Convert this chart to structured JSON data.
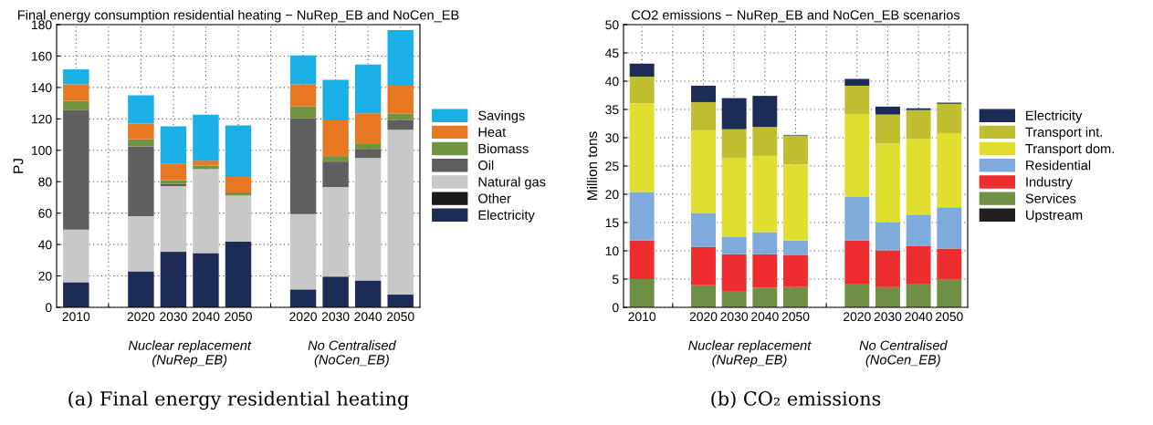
{
  "chart_data": [
    {
      "type": "bar",
      "title": "Final energy consumption residential heating − NuRep_EB and NoCen_EB",
      "ylabel": "PJ",
      "stacked": true,
      "categories": [
        "2010",
        null,
        "2020",
        "2030",
        "2040",
        "2050",
        null,
        "2020",
        "2030",
        "2040",
        "2050"
      ],
      "series": [
        {
          "name": "Electricity",
          "color": "#1d2b57",
          "values": [
            16,
            null,
            23,
            35,
            34.5,
            42,
            null,
            11.4,
            19.6,
            17.1,
            8.1
          ]
        },
        {
          "name": "Other",
          "color": "#1a1a1a",
          "values": [
            0,
            null,
            0,
            0.6,
            0,
            0,
            null,
            0,
            0,
            0,
            0
          ]
        },
        {
          "name": "Natural gas",
          "color": "#c8c8ca",
          "values": [
            33.5,
            null,
            35,
            41.6,
            53.5,
            29.2,
            null,
            47.9,
            57,
            78,
            104.9
          ]
        },
        {
          "name": "Oil",
          "color": "#5f5f5f",
          "values": [
            76,
            null,
            44.5,
            1.4,
            null,
            null,
            null,
            61.2,
            16.2,
            5.8,
            6.4
          ]
        },
        {
          "name": "Biomass",
          "color": "#72933f",
          "values": [
            6,
            null,
            4.5,
            2.4,
            2.3,
            2,
            null,
            7.5,
            3.5,
            3.1,
            4
          ]
        },
        {
          "name": "Heat",
          "color": "#e87722",
          "values": [
            10.5,
            null,
            10,
            10.3,
            3.1,
            9.8,
            null,
            14,
            22.7,
            19.6,
            17.7
          ]
        },
        {
          "name": "Savings",
          "color": "#1aafe6",
          "values": [
            9.5,
            null,
            18,
            24,
            29.2,
            32.8,
            null,
            18.4,
            25.8,
            31,
            35.4
          ]
        }
      ],
      "ylim": [
        0,
        180
      ],
      "yticks": [
        0,
        20,
        40,
        60,
        80,
        100,
        120,
        140,
        160,
        180
      ],
      "grid": true,
      "legend": "right",
      "annotations": [
        "Nuclear replacement\n(NuRep_EB)",
        "No Centralised\n(NoCen_EB)",
        "(a) Final energy residential heating"
      ]
    },
    {
      "type": "bar",
      "title": "CO2 emissions − NuRep_EB and NoCen_EB scenarios",
      "ylabel": "Million tons",
      "stacked": true,
      "categories": [
        "2010",
        null,
        "2020",
        "2030",
        "2040",
        "2050",
        null,
        "2020",
        "2030",
        "2040",
        "2050"
      ],
      "series": [
        {
          "name": "Upstream",
          "color": "#231f20",
          "values": [
            0,
            null,
            0,
            0,
            0,
            0,
            null,
            0,
            0,
            0,
            0
          ]
        },
        {
          "name": "Services",
          "color": "#6e8f45",
          "values": [
            5,
            null,
            3.9,
            2.9,
            3.5,
            3.6,
            null,
            4.2,
            3.6,
            4.2,
            4.9
          ]
        },
        {
          "name": "Industry",
          "color": "#ee2e2e",
          "values": [
            6.8,
            null,
            6.8,
            6.5,
            5.9,
            5.6,
            null,
            7.6,
            6.5,
            6.7,
            5.5
          ]
        },
        {
          "name": "Residential",
          "color": "#7eaadc",
          "values": [
            8.6,
            null,
            6,
            3.1,
            3.9,
            2.6,
            null,
            7.8,
            5,
            5.5,
            7.3
          ]
        },
        {
          "name": "Transport dom.",
          "color": "#e0df2f",
          "values": [
            15.7,
            null,
            14.6,
            13.9,
            13.5,
            13.5,
            null,
            14.6,
            13.9,
            13.4,
            13.1
          ]
        },
        {
          "name": "Transport int.",
          "color": "#bfbe30",
          "values": [
            4.7,
            null,
            5,
            5.1,
            5.1,
            5.1,
            null,
            5,
            5.1,
            5.1,
            5.2
          ]
        },
        {
          "name": "Electricity",
          "color": "#1d2b57",
          "values": [
            2.3,
            null,
            2.9,
            5.5,
            5.5,
            0.1,
            null,
            1.2,
            1.4,
            0.3,
            0.2
          ]
        }
      ],
      "ylim": [
        0,
        50
      ],
      "yticks": [
        0,
        5,
        10,
        15,
        20,
        25,
        30,
        35,
        40,
        45,
        50
      ],
      "grid": true,
      "legend": "right",
      "annotations": [
        "Nuclear replacement\n(NuRep_EB)",
        "No Centralised\n(NoCen_EB)",
        "(b) CO₂ emissions"
      ]
    }
  ]
}
